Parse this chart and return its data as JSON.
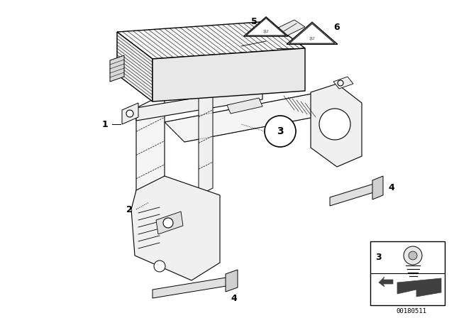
{
  "bg_color": "#ffffff",
  "fig_width": 6.4,
  "fig_height": 4.48,
  "dpi": 100,
  "watermark": "00180511",
  "lc": "#000000",
  "amp_top_fc": "#f5f5f5",
  "amp_side_fc": "#e0e0e0",
  "bracket_fc": "#f0f0f0",
  "bracket_fc2": "#e8e8e8",
  "white": "#ffffff"
}
